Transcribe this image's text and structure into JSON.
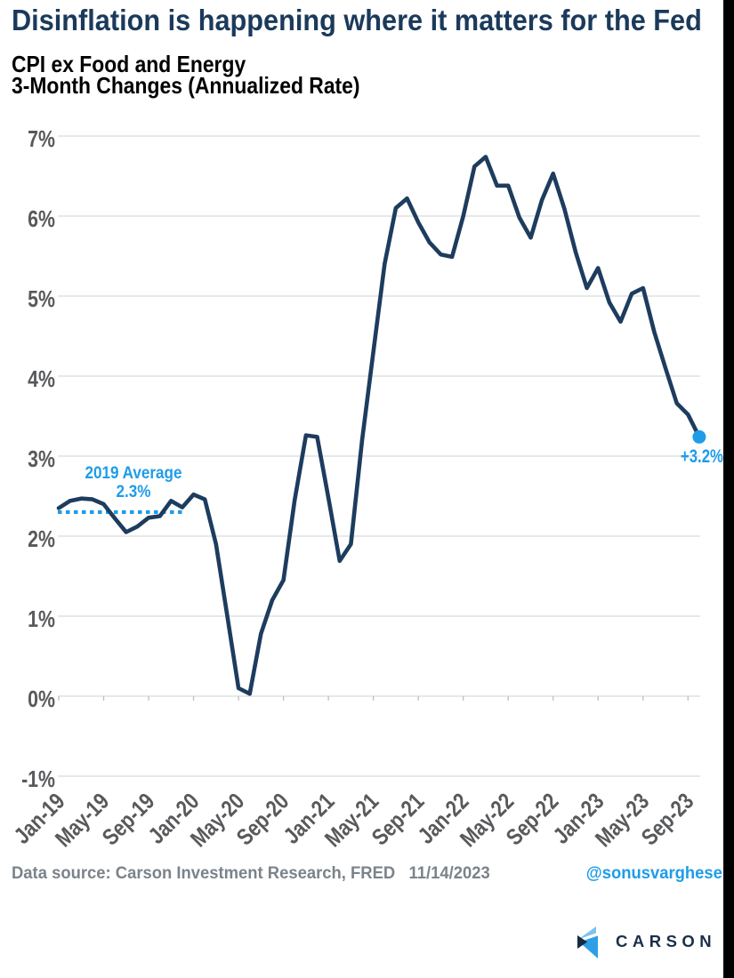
{
  "title": "Disinflation is happening where it matters for the Fed",
  "subtitle_line1": "CPI ex Food and Energy",
  "subtitle_line2": "3-Month Changes (Annualized Rate)",
  "annotations": {
    "avg_label_line1": "2019 Average",
    "avg_label_line2": "2.3%",
    "end_label": "+3.2%"
  },
  "footer": {
    "source_text": "Data source: Carson Investment Research, FRED   11/14/2023",
    "handle": "@sonusvarghese",
    "logo_text": "CARSON"
  },
  "colors": {
    "title_navy": "#1b3a5b",
    "line_navy": "#1d3c5e",
    "accent_blue": "#1e9ce8",
    "axis_gray": "#58595b",
    "footer_gray": "#7b838a",
    "gridline_gray": "#d9d9d9",
    "logo_navy": "#142b42",
    "logo_light_blue": "#7cc3f0",
    "logo_mid_blue": "#2e9fe6",
    "right_bar": "#000000"
  },
  "chart_data": {
    "type": "line",
    "title": "CPI ex Food and Energy — 3-Month Changes (Annualized Rate)",
    "ylim": [
      -1,
      7
    ],
    "y_tick_labels": [
      "7%",
      "6%",
      "5%",
      "4%",
      "3%",
      "2%",
      "1%",
      "0%",
      "-1%"
    ],
    "x_tick_labels": [
      "Jan-19",
      "May-19",
      "Sep-19",
      "Jan-20",
      "May-20",
      "Sep-20",
      "Jan-21",
      "May-21",
      "Sep-21",
      "Jan-22",
      "May-22",
      "Sep-22",
      "Jan-23",
      "May-23",
      "Sep-23"
    ],
    "months": [
      "Jan-19",
      "Feb-19",
      "Mar-19",
      "Apr-19",
      "May-19",
      "Jun-19",
      "Jul-19",
      "Aug-19",
      "Sep-19",
      "Oct-19",
      "Nov-19",
      "Dec-19",
      "Jan-20",
      "Feb-20",
      "Mar-20",
      "Apr-20",
      "May-20",
      "Jun-20",
      "Jul-20",
      "Aug-20",
      "Sep-20",
      "Oct-20",
      "Nov-20",
      "Dec-20",
      "Jan-21",
      "Feb-21",
      "Mar-21",
      "Apr-21",
      "May-21",
      "Jun-21",
      "Jul-21",
      "Aug-21",
      "Sep-21",
      "Oct-21",
      "Nov-21",
      "Dec-21",
      "Jan-22",
      "Feb-22",
      "Mar-22",
      "Apr-22",
      "May-22",
      "Jun-22",
      "Jul-22",
      "Aug-22",
      "Sep-22",
      "Oct-22",
      "Nov-22",
      "Dec-22",
      "Jan-23",
      "Feb-23",
      "Mar-23",
      "Apr-23",
      "May-23",
      "Jun-23",
      "Jul-23",
      "Aug-23",
      "Sep-23",
      "Oct-23"
    ],
    "values": [
      2.35,
      2.44,
      2.47,
      2.46,
      2.4,
      2.22,
      2.05,
      2.12,
      2.23,
      2.25,
      2.44,
      2.36,
      2.52,
      2.46,
      1.9,
      1.0,
      0.1,
      0.03,
      0.78,
      1.2,
      1.45,
      2.45,
      3.26,
      3.24,
      2.48,
      1.69,
      1.9,
      3.2,
      4.3,
      5.4,
      6.1,
      6.22,
      5.92,
      5.67,
      5.52,
      5.49,
      6.0,
      6.62,
      6.74,
      6.38,
      6.38,
      5.98,
      5.73,
      6.2,
      6.53,
      6.09,
      5.55,
      5.1,
      5.35,
      4.92,
      4.68,
      5.03,
      5.1,
      4.55,
      4.1,
      3.66,
      3.52,
      3.24
    ],
    "average_2019": 2.3,
    "last_value_label": "+3.2%",
    "grid": true,
    "legend": false
  }
}
